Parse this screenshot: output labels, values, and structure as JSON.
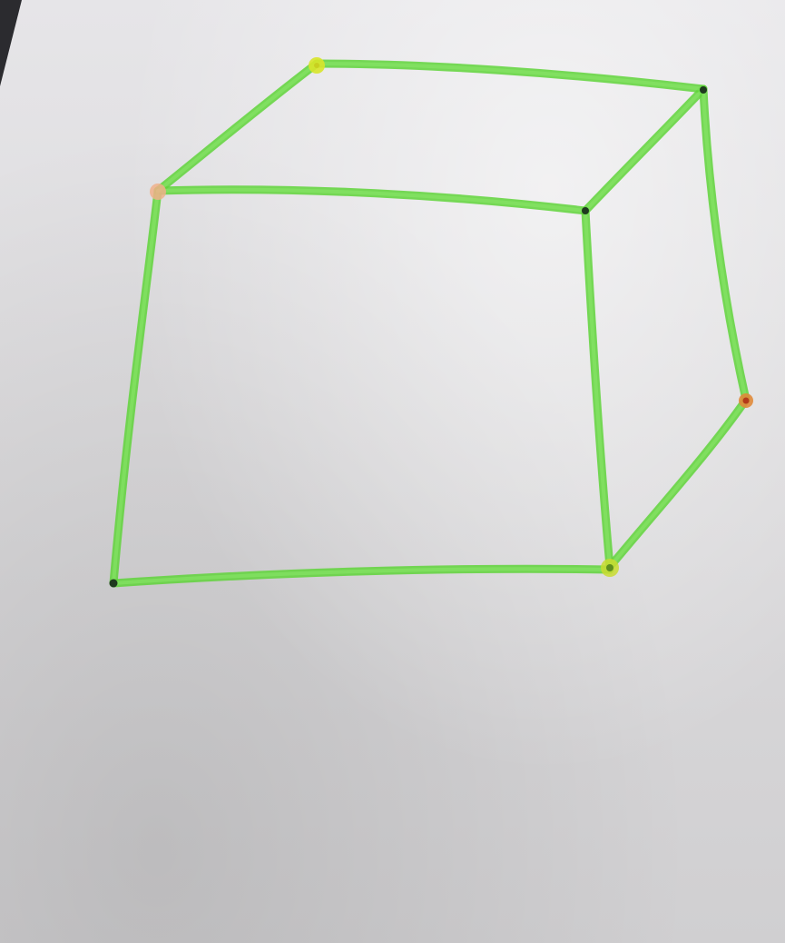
{
  "scene": {
    "subject": "hand-drawn cube",
    "paper_color": "#dcdbdd",
    "shadow_color": "#2b2b2f"
  },
  "drawing": {
    "line_color": "#5fd33a",
    "line_highlight": "#8be86a",
    "vertex_colors": {
      "yellow": "#d8e62a",
      "orange": "#f0b08a",
      "dark": "#1f3a1f",
      "red": "#b33a1a"
    }
  }
}
